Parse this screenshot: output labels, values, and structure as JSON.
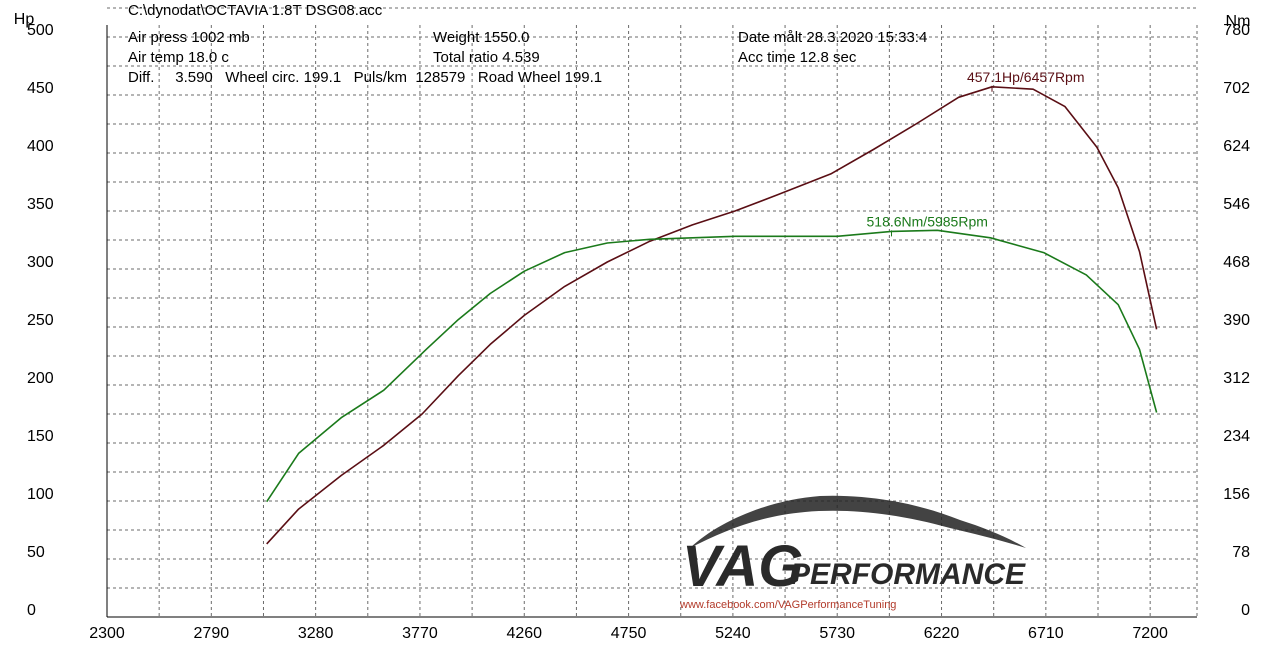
{
  "header": {
    "file": "C:\\dynodat\\OCTAVIA 1.8T DSG08.acc",
    "air_press": "Air press  1002 mb",
    "air_temp": "Air temp  18.0 c",
    "diff": "Diff.     3.590   Wheel circ. 199.1   Puls/km  128579   Road Wheel 199.1",
    "weight": "Weight   1550.0",
    "total_ratio": "Total ratio 4.539",
    "date": "Date målt 28.3.2020 15:33:4",
    "acc_time": "Acc time  12.8 sec"
  },
  "watermark": {
    "logo_vag": "VAG",
    "logo_performance": "PERFORMANCE",
    "url": "www.facebook.com/VAGPerformanceTuning"
  },
  "colors": {
    "power": "#5a0e14",
    "torque": "#1b7a1b",
    "grid": "#6b6b6b"
  },
  "chart_data": {
    "type": "line",
    "y_left_label": "Hp",
    "y_right_label": "Nm",
    "x_ticks": [
      2300,
      2790,
      3280,
      3770,
      4260,
      4750,
      5240,
      5730,
      6220,
      6710,
      7200
    ],
    "y_left_ticks": [
      0,
      50,
      100,
      150,
      200,
      250,
      300,
      350,
      400,
      450,
      500
    ],
    "y_right_ticks": [
      0,
      78,
      156,
      234,
      312,
      390,
      468,
      546,
      624,
      702,
      780
    ],
    "xlim": [
      2300,
      7420
    ],
    "ylim_left": [
      0,
      500
    ],
    "ylim_right": [
      0,
      780
    ],
    "grid": true,
    "series": [
      {
        "name": "power",
        "axis": "left",
        "x": [
          3050,
          3200,
          3400,
          3600,
          3780,
          3950,
          4100,
          4260,
          4450,
          4650,
          4850,
          5050,
          5250,
          5450,
          5700,
          5900,
          6100,
          6300,
          6457,
          6650,
          6800,
          6950,
          7050,
          7150,
          7230
        ],
        "values": [
          63,
          93,
          122,
          148,
          175,
          208,
          235,
          260,
          285,
          306,
          324,
          338,
          350,
          364,
          382,
          403,
          425,
          448,
          457.1,
          455,
          440,
          405,
          370,
          315,
          248
        ]
      },
      {
        "name": "torque",
        "axis": "right",
        "x": [
          3050,
          3200,
          3400,
          3600,
          3800,
          3950,
          4100,
          4260,
          4450,
          4650,
          4850,
          5050,
          5250,
          5450,
          5730,
          5985,
          6200,
          6450,
          6700,
          6900,
          7050,
          7150,
          7230
        ],
        "values": [
          155,
          220,
          268,
          305,
          360,
          400,
          435,
          465,
          490,
          503,
          508,
          510,
          512,
          512,
          512,
          518.6,
          520,
          510,
          490,
          460,
          420,
          360,
          275
        ]
      }
    ],
    "annotations": [
      {
        "text": "457.1Hp/6457Rpm",
        "series": "power",
        "x": 6457,
        "value": 457.1
      },
      {
        "text": "518.6Nm/5985Rpm",
        "series": "torque",
        "x": 5985,
        "value": 518.6
      }
    ]
  }
}
